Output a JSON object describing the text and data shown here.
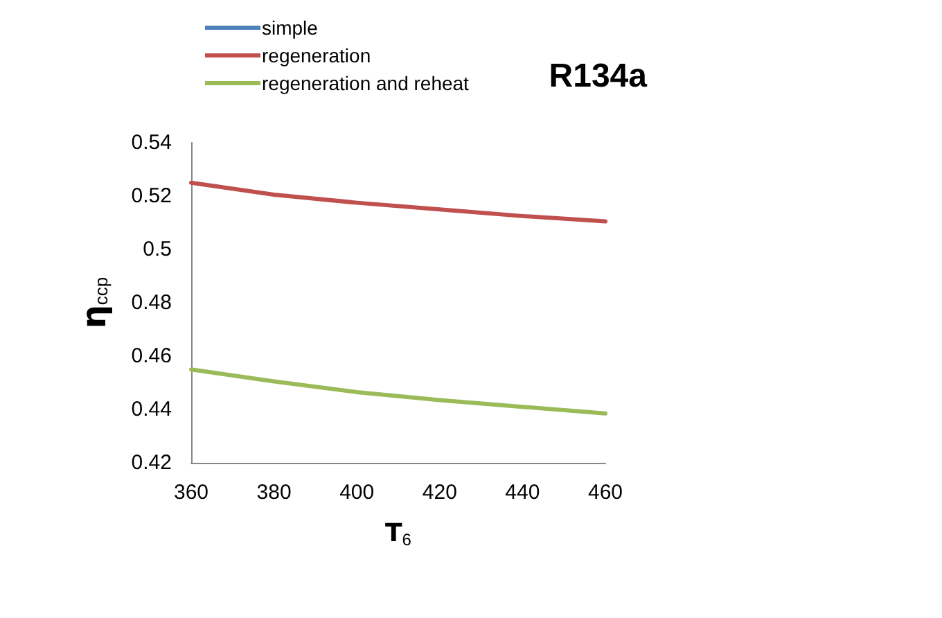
{
  "chart_data": {
    "type": "line",
    "title": "R134a",
    "xlabel": "T$_{6}$",
    "ylabel": "η$_{ccp}$",
    "x": [
      360,
      380,
      400,
      420,
      440,
      460
    ],
    "series": [
      {
        "name": "simple",
        "color": "#4f81bd",
        "values": [
          null,
          null,
          null,
          null,
          null,
          null
        ]
      },
      {
        "name": "regeneration",
        "color": "#c0504d",
        "values": [
          0.525,
          0.5205,
          0.5175,
          0.515,
          0.5125,
          0.5105
        ]
      },
      {
        "name": "regeneration and reheat",
        "color": "#9bbb59",
        "values": [
          0.455,
          0.4505,
          0.4465,
          0.4435,
          0.441,
          0.4385
        ]
      }
    ],
    "xlim": [
      360,
      460
    ],
    "xticks": [
      360,
      380,
      400,
      420,
      440,
      460
    ],
    "ylim": [
      0.42,
      0.54
    ],
    "yticks": [
      0.42,
      0.44,
      0.46,
      0.48,
      0.5,
      0.52,
      0.54
    ],
    "grid": false,
    "legend": "top left",
    "marker": "none",
    "line_style": "solid"
  }
}
